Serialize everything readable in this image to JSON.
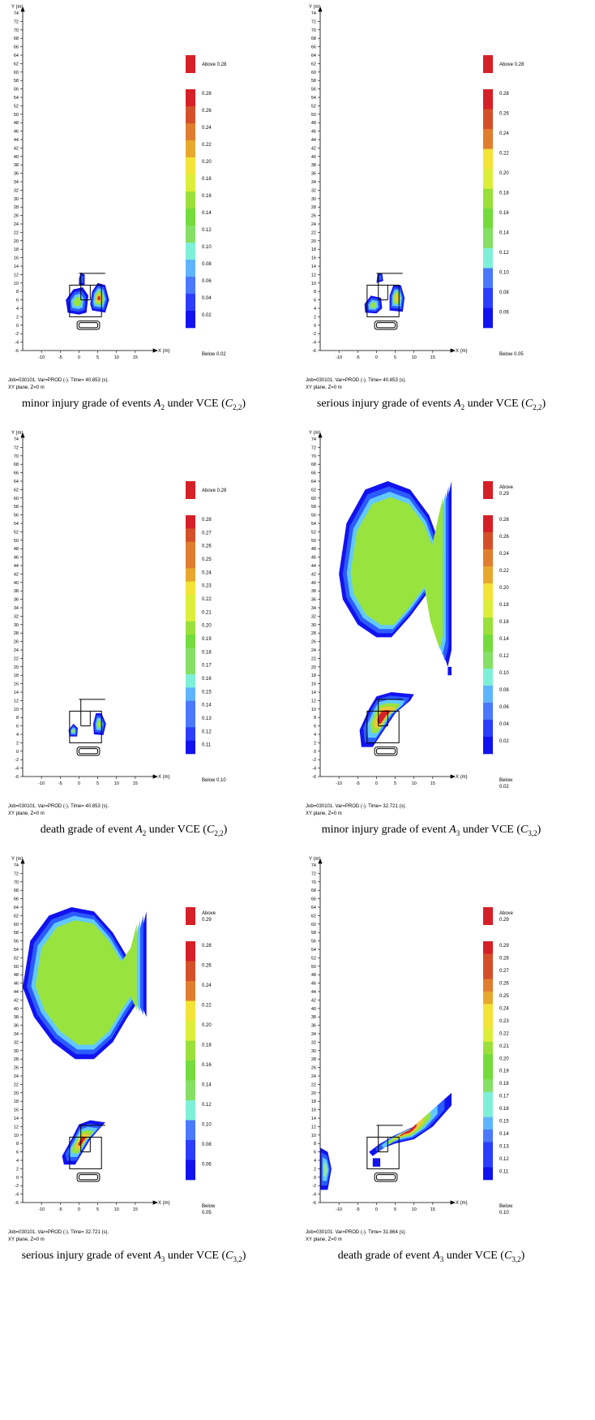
{
  "axis": {
    "y_title": "Y (m)",
    "x_title": "X (m)",
    "y_ticks": [
      74,
      72,
      70,
      68,
      66,
      64,
      62,
      60,
      58,
      56,
      54,
      52,
      50,
      48,
      46,
      44,
      42,
      40,
      38,
      36,
      34,
      32,
      30,
      28,
      26,
      24,
      22,
      20,
      18,
      16,
      14,
      12,
      10,
      8,
      6,
      4,
      2,
      0,
      -2,
      -4,
      -6
    ],
    "x_ticks": [
      -10,
      -5,
      0,
      5,
      10,
      15
    ],
    "ylim": [
      -6,
      74
    ],
    "xlim": [
      -15,
      20
    ]
  },
  "panels": [
    {
      "chart_data": {
        "type": "heatmap",
        "xlim": [
          -15,
          20
        ],
        "ylim": [
          -6,
          74
        ],
        "legend_position": "right"
      },
      "legend": {
        "above": [
          "Above 0.28"
        ],
        "levels": [
          "0.28",
          "0.26",
          "0.24",
          "0.22",
          "0.20",
          "0.18",
          "0.16",
          "0.14",
          "0.12",
          "0.10",
          "0.08",
          "0.06",
          "0.04",
          "0.02"
        ],
        "below": [
          "Below 0.02"
        ]
      },
      "job_line1": "Job=030101.  Var=PROD (-). Time=  40.853 (s).",
      "job_line2": "XY plane, Z=0 m",
      "caption": {
        "pre": "minor injury grade of events ",
        "event": "A",
        "event_sub": "2",
        "mid": " under VCE (",
        "c": "C",
        "c_sub": "2,2",
        "post": ")"
      }
    },
    {
      "chart_data": {
        "type": "heatmap",
        "xlim": [
          -15,
          20
        ],
        "ylim": [
          -6,
          74
        ],
        "legend_position": "right"
      },
      "legend": {
        "above": [
          "Above 0.28"
        ],
        "levels": [
          "0.28",
          "0.26",
          "0.24",
          "0.22",
          "0.20",
          "0.18",
          "0.16",
          "0.14",
          "0.12",
          "0.10",
          "0.08",
          "0.06"
        ],
        "below": [
          "Below 0.05"
        ]
      },
      "job_line1": "Job=030101.  Var=PROD (-). Time=  40.853 (s).",
      "job_line2": "XY plane, Z=0 m",
      "caption": {
        "pre": "serious injury grade of events ",
        "event": "A",
        "event_sub": "2",
        "mid": " under VCE (",
        "c": "C",
        "c_sub": "2,2",
        "post": ")"
      }
    },
    {
      "chart_data": {
        "type": "heatmap",
        "xlim": [
          -15,
          20
        ],
        "ylim": [
          -6,
          74
        ],
        "legend_position": "right"
      },
      "legend": {
        "above": [
          "Above 0.28"
        ],
        "levels": [
          "0.28",
          "0.27",
          "0.26",
          "0.25",
          "0.24",
          "0.23",
          "0.22",
          "0.21",
          "0.20",
          "0.19",
          "0.18",
          "0.17",
          "0.16",
          "0.15",
          "0.14",
          "0.13",
          "0.12",
          "0.11"
        ],
        "below": [
          "Below 0.10"
        ]
      },
      "job_line1": "Job=030101.  Var=PROD (-). Time=  40.853 (s).",
      "job_line2": "XY plane, Z=0 m",
      "caption": {
        "pre": "death grade of event ",
        "event": "A",
        "event_sub": "2",
        "mid": " under VCE (",
        "c": "C",
        "c_sub": "2,2",
        "post": ")"
      }
    },
    {
      "chart_data": {
        "type": "heatmap",
        "xlim": [
          -15,
          20
        ],
        "ylim": [
          -6,
          74
        ],
        "legend_position": "right"
      },
      "legend": {
        "above": [
          "Above",
          "0.29"
        ],
        "levels": [
          "0.28",
          "0.26",
          "0.24",
          "0.22",
          "0.20",
          "0.18",
          "0.16",
          "0.14",
          "0.12",
          "0.10",
          "0.08",
          "0.06",
          "0.04",
          "0.02"
        ],
        "below": [
          "Below",
          "0.02"
        ]
      },
      "job_line1": "Job=030101.  Var=PROD (-). Time=  32.721 (s).",
      "job_line2": "XY plane, Z=0 m",
      "caption": {
        "pre": "minor injury grade of event ",
        "event": "A",
        "event_sub": "3",
        "mid": " under VCE (",
        "c": "C",
        "c_sub": "3,2",
        "post": ")"
      }
    },
    {
      "chart_data": {
        "type": "heatmap",
        "xlim": [
          -15,
          20
        ],
        "ylim": [
          -6,
          74
        ],
        "legend_position": "right"
      },
      "legend": {
        "above": [
          "Above",
          "0.29"
        ],
        "levels": [
          "0.28",
          "0.26",
          "0.24",
          "0.22",
          "0.20",
          "0.18",
          "0.16",
          "0.14",
          "0.12",
          "0.10",
          "0.08",
          "0.06"
        ],
        "below": [
          "Below",
          "0.05"
        ]
      },
      "job_line1": "Job=030101.  Var=PROD (-). Time=  32.721 (s).",
      "job_line2": "XY plane, Z=0 m",
      "caption": {
        "pre": "serious injury grade of event ",
        "event": "A",
        "event_sub": "3",
        "mid": " under VCE (",
        "c": "C",
        "c_sub": "3,2",
        "post": ")"
      }
    },
    {
      "chart_data": {
        "type": "heatmap",
        "xlim": [
          -15,
          20
        ],
        "ylim": [
          -6,
          74
        ],
        "legend_position": "right"
      },
      "legend": {
        "above": [
          "Above",
          "0.29"
        ],
        "levels": [
          "0.29",
          "0.28",
          "0.27",
          "0.26",
          "0.25",
          "0.24",
          "0.23",
          "0.22",
          "0.21",
          "0.20",
          "0.19",
          "0.18",
          "0.17",
          "0.16",
          "0.15",
          "0.14",
          "0.13",
          "0.12",
          "0.11"
        ],
        "below": [
          "Below",
          "0.10"
        ]
      },
      "job_line1": "Job=030101.  Var=PROD (-). Time=  31.864 (s).",
      "job_line2": "XY plane, Z=0 m",
      "caption": {
        "pre": "death grade of event ",
        "event": "A",
        "event_sub": "3",
        "mid": " under VCE (",
        "c": "C",
        "c_sub": "3,2",
        "post": ")"
      }
    }
  ],
  "colors": {
    "above": "#d62027",
    "scale": [
      "#d62027",
      "#d4502a",
      "#e07d2e",
      "#e8a82e",
      "#f2e437",
      "#ddee3a",
      "#9be03a",
      "#74dc3c",
      "#86e066",
      "#7ff0d8",
      "#5fb4ff",
      "#4a78ff",
      "#2b3dff",
      "#1212f0"
    ],
    "contour": [
      "#1212f0",
      "#2b5cff",
      "#61c9ff",
      "#8fe6a0",
      "#99e33e"
    ],
    "hot": "#e8c93a",
    "core": "#d62027"
  }
}
